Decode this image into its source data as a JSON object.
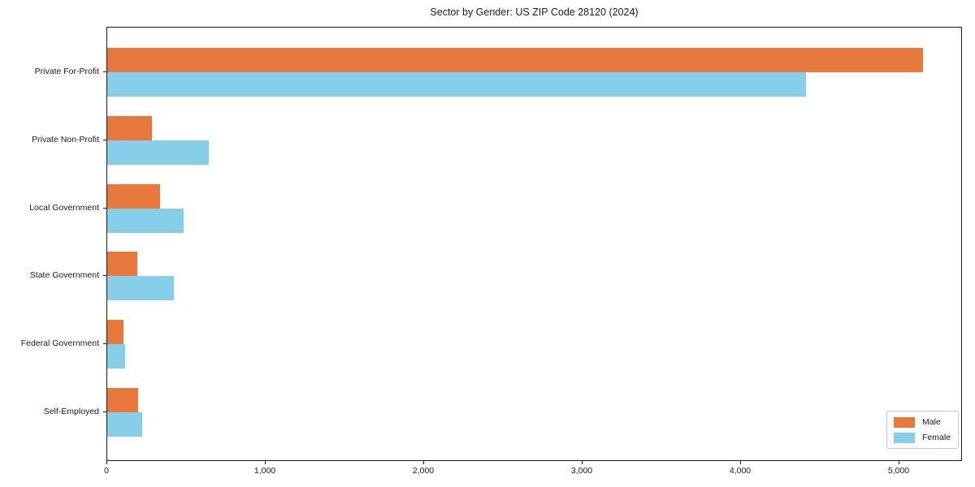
{
  "title": "Sector by Gender: US ZIP Code 28120 (2024)",
  "chart_data": {
    "type": "bar",
    "orientation": "horizontal",
    "title": "Sector by Gender: US ZIP Code 28120 (2024)",
    "categories": [
      "Private For-Profit",
      "Private Non-Profit",
      "Local Government",
      "State Government",
      "Federal Government",
      "Self-Employed"
    ],
    "series": [
      {
        "name": "Male",
        "color": "#e8793e",
        "values": [
          5150,
          280,
          335,
          190,
          105,
          195
        ]
      },
      {
        "name": "Female",
        "color": "#87ceeb",
        "values": [
          4410,
          640,
          480,
          420,
          115,
          220
        ]
      }
    ],
    "xlabel": "",
    "ylabel": "",
    "xlim": [
      0,
      5400
    ],
    "xticks": [
      0,
      1000,
      2000,
      3000,
      4000,
      5000
    ],
    "xtick_labels": [
      "0",
      "1,000",
      "2,000",
      "3,000",
      "4,000",
      "5,000"
    ],
    "legend_position": "lower right",
    "grid": false,
    "axis_color": "#1a1a1a"
  }
}
